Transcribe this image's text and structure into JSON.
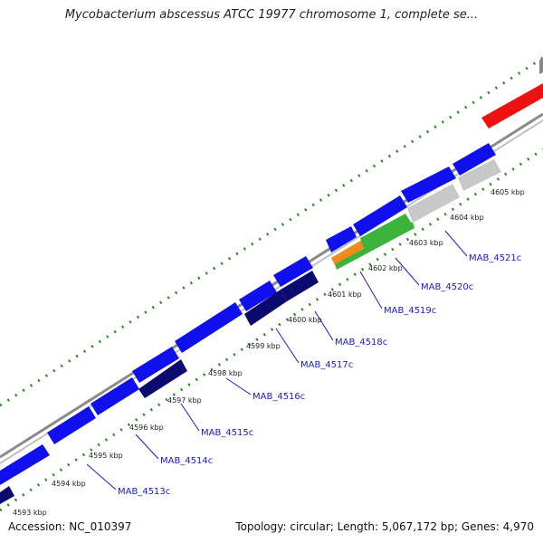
{
  "title": "Mycobacterium abscessus ATCC 19977 chromosome 1, complete se...",
  "footer": {
    "accession": "Accession: NC_010397",
    "summary": "Topology: circular; Length: 5,067,172 bp; Genes: 4,970"
  },
  "colors": {
    "forward_cds": "#1010ee",
    "reverse_cds": "#0a0a70",
    "backbone": "#888888",
    "tick": "#2a8a2a",
    "gene_label": "#1a1acc",
    "red_feature": "#ee1111",
    "orange_feature": "#f08a1a",
    "green_feature": "#3ab43a",
    "grey_feature": "#c8c8c8"
  },
  "kbp_labels": [
    "4593 kbp",
    "4594 kbp",
    "4595 kbp",
    "4596 kbp",
    "4597 kbp",
    "4598 kbp",
    "4599 kbp",
    "4600 kbp",
    "4601 kbp",
    "4602 kbp",
    "4603 kbp",
    "4604 kbp",
    "4605 kbp"
  ],
  "gene_labels": [
    "MAB_4513c",
    "MAB_4514c",
    "MAB_4515c",
    "MAB_4516c",
    "MAB_4517c",
    "MAB_4518c",
    "MAB_4519c",
    "MAB_4520c",
    "MAB_4521c"
  ]
}
